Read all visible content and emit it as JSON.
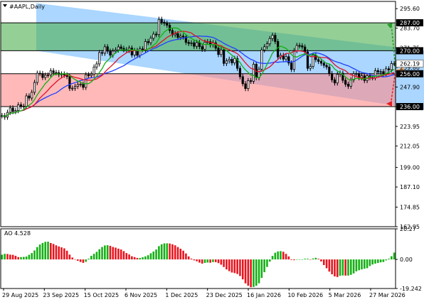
{
  "window": {
    "title": "#AAPL,Daily"
  },
  "chart_data": [
    {
      "type": "candlestick",
      "title": "#AAPL,Daily",
      "ylim": [
        162.95,
        300.0
      ],
      "yticks": [
        295.6,
        283.7,
        271.75,
        259.8,
        247.9,
        235.95,
        223.95,
        212.05,
        199.0,
        187.1,
        174.85,
        162.95
      ],
      "xticks": [
        "29 Aug 2025",
        "23 Sep 2025",
        "15 Oct 2025",
        "6 Nov 2025",
        "1 Dec 2025",
        "23 Dec 2025",
        "16 Jan 2026",
        "10 Feb 2026",
        "5 Mar 2026",
        "27 Mar 2026"
      ],
      "levels": [
        {
          "value": 287.0,
          "label": "287.00"
        },
        {
          "value": 270.0,
          "label": "270.00"
        },
        {
          "value": 256.0,
          "label": "256.00"
        },
        {
          "value": 236.0,
          "label": "236.00"
        }
      ],
      "current_price": {
        "value": 262.19,
        "label": "262.19"
      },
      "zones": [
        {
          "name": "buy-zone",
          "from": 270.0,
          "to": 287.0,
          "color": "#4caf50"
        },
        {
          "name": "sell-zone",
          "from": 236.0,
          "to": 256.0,
          "color": "#ff8a8a"
        }
      ],
      "channel": {
        "upper_start": 299.0,
        "upper_end": 270.0,
        "lower_start": 270.0,
        "lower_end": 234.0,
        "color": "#64b4ff"
      },
      "series": [
        {
          "kind": "close",
          "values": [
            230.5,
            229.6,
            232.5,
            235.2,
            233,
            233.6,
            237.1,
            236.1,
            236.2,
            242.5,
            241.2,
            244.7,
            250.7,
            256.3,
            256.1,
            253.7,
            255.1,
            255.2,
            257.8,
            256.7,
            256.6,
            255.4,
            255.8,
            255.2,
            254.3,
            247.1,
            247.2,
            248.3,
            249.5,
            249.7,
            247.7,
            255.4,
            254.9,
            255.8,
            260.1,
            262,
            268.9,
            268.5,
            272.4,
            269.7,
            267.3,
            269.8,
            270.5,
            272.3,
            271.4,
            270.6,
            270.2,
            271.6,
            267.4,
            270.1,
            267.2,
            271.1,
            270.6,
            275.6,
            274.9,
            277.6,
            280.1,
            279.8,
            289.1,
            287.4,
            286.7,
            285.5,
            282.3,
            279.7,
            280.4,
            278.1,
            278.9,
            278.4,
            275.1,
            274.4,
            274.8,
            272.7,
            275,
            272.5,
            270.9,
            275.2,
            275.5,
            273.6,
            274.8,
            271.6,
            267.7,
            270.5,
            262.3,
            263.8,
            264.8,
            262.6,
            265.3,
            259.3,
            254.2,
            249.9,
            247,
            251.8,
            251.4,
            261.8,
            253.6,
            258.8,
            270.5,
            272.4,
            274.2,
            277.4,
            279.4,
            275.6,
            266.2,
            267.2,
            264.9,
            266.4,
            262.5,
            258.6,
            270.1,
            273.2,
            273,
            272.3,
            269.3,
            259.3,
            260.5,
            267.3,
            264.6,
            263.5,
            262.4,
            261.1,
            260.1,
            256.1,
            252.3,
            250.4,
            255.6,
            256.3,
            252,
            249.6,
            248.4,
            252.2,
            256,
            256.1,
            253.6,
            254.8,
            251.9,
            254.8,
            253.6,
            253.6,
            257.9,
            257.1,
            257.3,
            256,
            259,
            258.4,
            262.2,
            262.2
          ]
        },
        {
          "name": "MA-blue",
          "period": 21,
          "color": "#1f3fff"
        },
        {
          "name": "MA-red",
          "period": 13,
          "color": "#e0102a"
        },
        {
          "name": "MA-green",
          "period": 8,
          "color": "#12b012"
        }
      ]
    },
    {
      "type": "bar",
      "title": "AO 4.528",
      "ylim": [
        -19.242,
        20.27
      ],
      "yticks": [
        20.27,
        0.0,
        -19.242
      ],
      "values": [
        3.13,
        3.72,
        3.6,
        3.16,
        3.06,
        2.42,
        1.57,
        1.57,
        1.68,
        1.93,
        3.07,
        4.23,
        5.96,
        8.17,
        9.87,
        10.89,
        11.65,
        11.75,
        10.88,
        10.24,
        9.33,
        8.59,
        8.01,
        7.33,
        5.78,
        3.19,
        1.25,
        -0.12,
        -0.9,
        -1.67,
        -2.27,
        -1.56,
        0.51,
        2.37,
        3.71,
        5.04,
        6.76,
        8.24,
        9.27,
        9.4,
        9.01,
        8.25,
        7.79,
        7.14,
        6.58,
        5.5,
        4.21,
        3.28,
        2.09,
        1.55,
        0.96,
        0.97,
        1.47,
        2.01,
        2.77,
        4.07,
        5.23,
        6.56,
        8.8,
        10.03,
        10.64,
        10.65,
        10.54,
        10.05,
        9.35,
        8.21,
        7.1,
        5.78,
        3.97,
        2.01,
        0.52,
        -0.61,
        -1.21,
        -2.11,
        -2.76,
        -2.3,
        -2.06,
        -2.2,
        -1.77,
        -1.79,
        -2.42,
        -3.49,
        -5.05,
        -6.63,
        -7.77,
        -8.66,
        -9.05,
        -9.67,
        -11,
        -13.18,
        -15.85,
        -17.42,
        -18.38,
        -18.23,
        -17.44,
        -15.8,
        -12.27,
        -8.46,
        -4.97,
        -1.45,
        2.34,
        4.46,
        5.29,
        5.51,
        5.08,
        3.7,
        1.98,
        -0.35,
        -0.49,
        -0.2,
        -0.15,
        -0.07,
        0.44,
        0.46,
        0.01,
        0.61,
        1.07,
        0.41,
        -1.33,
        -3.74,
        -5.82,
        -8.06,
        -9.84,
        -11.25,
        -11.65,
        -10.84,
        -10.61,
        -10.69,
        -10.69,
        -10.21,
        -9.26,
        -7.89,
        -7.16,
        -6.59,
        -6.13,
        -5.8,
        -4.39,
        -3.36,
        -2.78,
        -2.36,
        -1.93,
        -1.71,
        -0.61,
        0.5,
        2.12,
        4.53
      ],
      "colors": {
        "up": "#16b016",
        "down": "#e8141e"
      }
    }
  ]
}
